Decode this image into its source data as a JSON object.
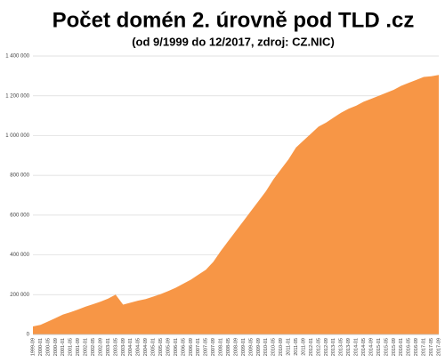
{
  "chart_data": {
    "type": "area",
    "title": "Počet domén 2. úrovně pod TLD .cz",
    "subtitle": "(od 9/1999 do 12/2017, zdroj: CZ.NIC)",
    "categories": [
      "1999-09",
      "2000-01",
      "2000-05",
      "2000-09",
      "2001-01",
      "2001-05",
      "2001-09",
      "2002-01",
      "2002-05",
      "2002-09",
      "2003-01",
      "2003-05",
      "2003-09",
      "2004-01",
      "2004-05",
      "2004-09",
      "2005-01",
      "2005-05",
      "2005-09",
      "2006-01",
      "2006-05",
      "2006-09",
      "2007-01",
      "2007-05",
      "2007-09",
      "2008-01",
      "2008-05",
      "2008-09",
      "2009-01",
      "2009-05",
      "2009-09",
      "2010-01",
      "2010-05",
      "2010-09",
      "2011-01",
      "2011-05",
      "2011-09",
      "2012-01",
      "2012-05",
      "2012-09",
      "2013-01",
      "2013-05",
      "2013-09",
      "2014-01",
      "2014-05",
      "2014-09",
      "2015-01",
      "2015-05",
      "2015-09",
      "2016-01",
      "2016-05",
      "2016-09",
      "2017-01",
      "2017-05",
      "2017-09"
    ],
    "values": [
      40000,
      48000,
      65000,
      82000,
      100000,
      112000,
      125000,
      140000,
      152000,
      165000,
      180000,
      200000,
      150000,
      160000,
      170000,
      178000,
      190000,
      203000,
      218000,
      235000,
      255000,
      275000,
      300000,
      325000,
      365000,
      420000,
      470000,
      520000,
      570000,
      620000,
      670000,
      720000,
      780000,
      830000,
      880000,
      940000,
      975000,
      1010000,
      1045000,
      1065000,
      1090000,
      1115000,
      1135000,
      1150000,
      1170000,
      1185000,
      1200000,
      1215000,
      1230000,
      1250000,
      1265000,
      1280000,
      1295000,
      1298000,
      1305000
    ],
    "color": "#f79646",
    "ylim": [
      0,
      1400000
    ],
    "yticks": [
      0,
      {
        "value": 200000,
        "label": "200 000"
      },
      {
        "value": 400000,
        "label": "400 000"
      },
      {
        "value": 600000,
        "label": "600 000"
      },
      {
        "value": 800000,
        "label": "800 000"
      },
      {
        "value": 1000000,
        "label": "1 000 000"
      },
      {
        "value": 1200000,
        "label": "1 200 000"
      },
      {
        "value": 1400000,
        "label": "1 400 000"
      }
    ],
    "grid": true
  }
}
